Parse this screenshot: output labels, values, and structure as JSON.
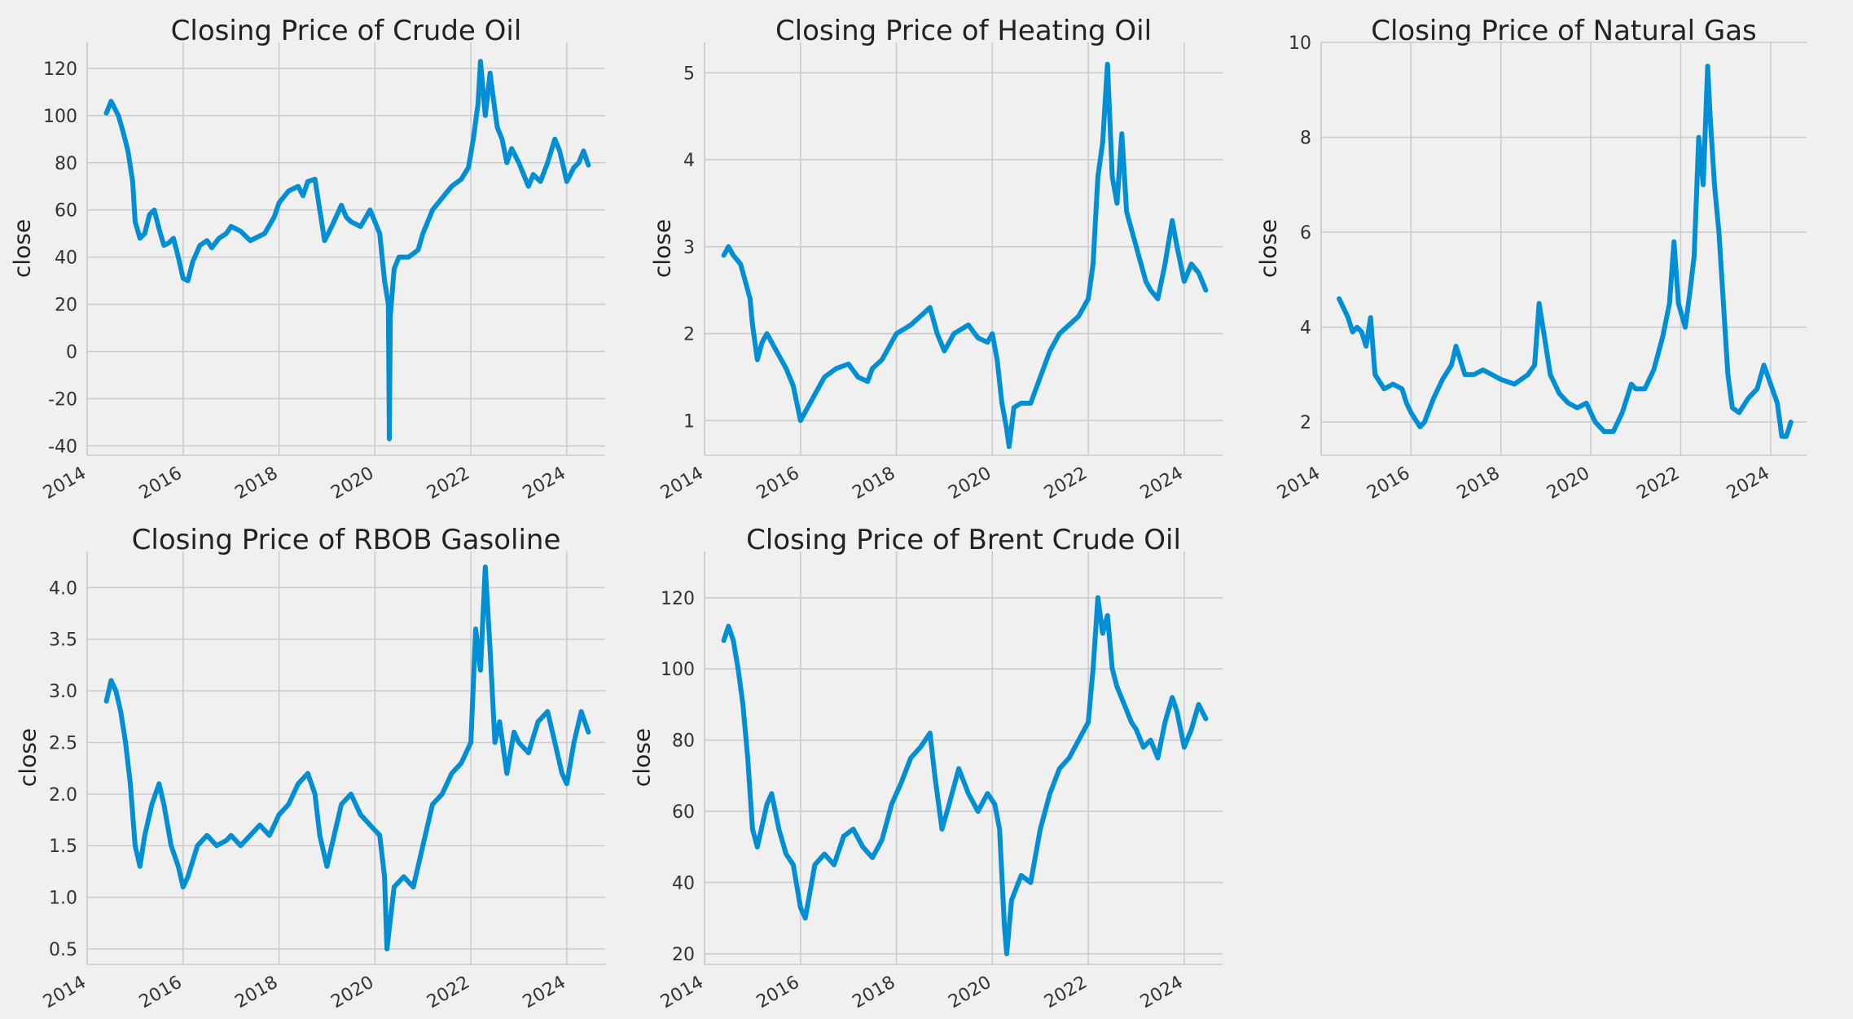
{
  "figure": {
    "background": "#f0f0f0",
    "line_color": "#008fd5",
    "grid_color": "#cbcbcb"
  },
  "chart_data": [
    {
      "type": "line",
      "title": "Closing Price of Crude Oil",
      "xlabel": "",
      "ylabel": "close",
      "xlim": [
        2014.0,
        2024.8
      ],
      "ylim": [
        -44,
        131
      ],
      "xticks": [
        2014,
        2016,
        2018,
        2020,
        2022,
        2024
      ],
      "yticks": [
        -40,
        -20,
        0,
        20,
        40,
        60,
        80,
        100,
        120
      ],
      "grid": true,
      "x": [
        2014.4,
        2014.5,
        2014.55,
        2014.65,
        2014.75,
        2014.85,
        2014.95,
        2015.0,
        2015.1,
        2015.2,
        2015.3,
        2015.4,
        2015.5,
        2015.6,
        2015.7,
        2015.8,
        2015.9,
        2016.0,
        2016.1,
        2016.2,
        2016.35,
        2016.5,
        2016.6,
        2016.75,
        2016.9,
        2017.0,
        2017.2,
        2017.4,
        2017.5,
        2017.7,
        2017.9,
        2018.0,
        2018.2,
        2018.4,
        2018.5,
        2018.6,
        2018.75,
        2018.85,
        2018.95,
        2019.1,
        2019.3,
        2019.4,
        2019.5,
        2019.7,
        2019.9,
        2020.0,
        2020.1,
        2020.2,
        2020.28,
        2020.3,
        2020.32,
        2020.4,
        2020.5,
        2020.7,
        2020.9,
        2021.0,
        2021.2,
        2021.4,
        2021.6,
        2021.8,
        2021.95,
        2022.05,
        2022.15,
        2022.2,
        2022.3,
        2022.4,
        2022.45,
        2022.55,
        2022.65,
        2022.75,
        2022.85,
        2023.0,
        2023.2,
        2023.3,
        2023.45,
        2023.6,
        2023.75,
        2023.85,
        2024.0,
        2024.15,
        2024.25,
        2024.35,
        2024.45
      ],
      "y": [
        101,
        106,
        104,
        100,
        93,
        85,
        72,
        55,
        48,
        50,
        58,
        60,
        52,
        45,
        46,
        48,
        40,
        31,
        30,
        38,
        45,
        47,
        44,
        48,
        50,
        53,
        51,
        47,
        48,
        50,
        57,
        63,
        68,
        70,
        66,
        72,
        73,
        60,
        47,
        53,
        62,
        57,
        55,
        53,
        60,
        55,
        50,
        30,
        20,
        -37,
        15,
        35,
        40,
        40,
        43,
        50,
        60,
        65,
        70,
        73,
        78,
        90,
        105,
        123,
        100,
        118,
        110,
        95,
        90,
        80,
        86,
        80,
        70,
        75,
        72,
        80,
        90,
        85,
        72,
        78,
        80,
        85,
        79
      ]
    },
    {
      "type": "line",
      "title": "Closing Price of Heating Oil",
      "xlabel": "",
      "ylabel": "close",
      "xlim": [
        2014.0,
        2024.8
      ],
      "ylim": [
        0.6,
        5.35
      ],
      "xticks": [
        2014,
        2016,
        2018,
        2020,
        2022,
        2024
      ],
      "yticks": [
        1,
        2,
        3,
        4,
        5
      ],
      "grid": true,
      "x": [
        2014.4,
        2014.5,
        2014.6,
        2014.75,
        2014.85,
        2014.95,
        2015.0,
        2015.1,
        2015.2,
        2015.3,
        2015.5,
        2015.7,
        2015.85,
        2016.0,
        2016.1,
        2016.3,
        2016.5,
        2016.75,
        2017.0,
        2017.2,
        2017.4,
        2017.5,
        2017.7,
        2017.9,
        2018.0,
        2018.3,
        2018.5,
        2018.7,
        2018.85,
        2019.0,
        2019.2,
        2019.5,
        2019.7,
        2019.9,
        2020.0,
        2020.1,
        2020.2,
        2020.3,
        2020.35,
        2020.45,
        2020.6,
        2020.8,
        2021.0,
        2021.2,
        2021.4,
        2021.6,
        2021.8,
        2022.0,
        2022.1,
        2022.2,
        2022.3,
        2022.4,
        2022.5,
        2022.6,
        2022.7,
        2022.8,
        2022.9,
        2023.0,
        2023.1,
        2023.2,
        2023.3,
        2023.45,
        2023.6,
        2023.75,
        2023.85,
        2024.0,
        2024.15,
        2024.3,
        2024.45
      ],
      "y": [
        2.9,
        3.0,
        2.9,
        2.8,
        2.6,
        2.4,
        2.1,
        1.7,
        1.9,
        2.0,
        1.8,
        1.6,
        1.4,
        1.0,
        1.1,
        1.3,
        1.5,
        1.6,
        1.65,
        1.5,
        1.45,
        1.6,
        1.7,
        1.9,
        2.0,
        2.1,
        2.2,
        2.3,
        2.0,
        1.8,
        2.0,
        2.1,
        1.95,
        1.9,
        2.0,
        1.7,
        1.2,
        0.9,
        0.7,
        1.15,
        1.2,
        1.2,
        1.5,
        1.8,
        2.0,
        2.1,
        2.2,
        2.4,
        2.8,
        3.8,
        4.2,
        5.1,
        3.8,
        3.5,
        4.3,
        3.4,
        3.2,
        3.0,
        2.8,
        2.6,
        2.5,
        2.4,
        2.8,
        3.3,
        3.0,
        2.6,
        2.8,
        2.7,
        2.5
      ]
    },
    {
      "type": "line",
      "title": "Closing Price of Natural Gas",
      "xlabel": "",
      "ylabel": "close",
      "xlim": [
        2014.0,
        2024.8
      ],
      "ylim": [
        1.3,
        10.0
      ],
      "xticks": [
        2014,
        2016,
        2018,
        2020,
        2022,
        2024
      ],
      "yticks": [
        2,
        4,
        6,
        8,
        10
      ],
      "grid": true,
      "x": [
        2014.4,
        2014.5,
        2014.6,
        2014.7,
        2014.8,
        2014.9,
        2015.0,
        2015.1,
        2015.2,
        2015.4,
        2015.6,
        2015.8,
        2015.9,
        2016.0,
        2016.2,
        2016.3,
        2016.5,
        2016.7,
        2016.9,
        2017.0,
        2017.2,
        2017.4,
        2017.6,
        2017.8,
        2018.0,
        2018.3,
        2018.6,
        2018.75,
        2018.85,
        2018.95,
        2019.1,
        2019.3,
        2019.5,
        2019.7,
        2019.9,
        2020.1,
        2020.3,
        2020.5,
        2020.7,
        2020.9,
        2021.0,
        2021.2,
        2021.4,
        2021.6,
        2021.75,
        2021.85,
        2021.95,
        2022.1,
        2022.2,
        2022.3,
        2022.4,
        2022.5,
        2022.6,
        2022.65,
        2022.75,
        2022.85,
        2022.95,
        2023.05,
        2023.15,
        2023.3,
        2023.5,
        2023.7,
        2023.85,
        2024.0,
        2024.15,
        2024.25,
        2024.35,
        2024.45
      ],
      "y": [
        4.6,
        4.4,
        4.2,
        3.9,
        4.0,
        3.9,
        3.6,
        4.2,
        3.0,
        2.7,
        2.8,
        2.7,
        2.4,
        2.2,
        1.9,
        2.0,
        2.5,
        2.9,
        3.2,
        3.6,
        3.0,
        3.0,
        3.1,
        3.0,
        2.9,
        2.8,
        3.0,
        3.2,
        4.5,
        3.9,
        3.0,
        2.6,
        2.4,
        2.3,
        2.4,
        2.0,
        1.8,
        1.8,
        2.2,
        2.8,
        2.7,
        2.7,
        3.1,
        3.8,
        4.5,
        5.8,
        4.5,
        4.0,
        4.7,
        5.5,
        8.0,
        7.0,
        9.5,
        8.5,
        7.0,
        6.0,
        4.5,
        3.0,
        2.3,
        2.2,
        2.5,
        2.7,
        3.2,
        2.8,
        2.4,
        1.7,
        1.7,
        2.0
      ]
    },
    {
      "type": "line",
      "title": "Closing Price of RBOB Gasoline",
      "xlabel": "",
      "ylabel": "close",
      "xlim": [
        2014.0,
        2024.8
      ],
      "ylim": [
        0.35,
        4.35
      ],
      "xticks": [
        2014,
        2016,
        2018,
        2020,
        2022,
        2024
      ],
      "yticks": [
        0.5,
        1.0,
        1.5,
        2.0,
        2.5,
        3.0,
        3.5,
        4.0
      ],
      "grid": true,
      "x": [
        2014.4,
        2014.5,
        2014.6,
        2014.7,
        2014.8,
        2014.9,
        2015.0,
        2015.1,
        2015.2,
        2015.35,
        2015.5,
        2015.6,
        2015.75,
        2015.9,
        2016.0,
        2016.1,
        2016.3,
        2016.5,
        2016.7,
        2016.9,
        2017.0,
        2017.2,
        2017.4,
        2017.6,
        2017.8,
        2018.0,
        2018.2,
        2018.4,
        2018.6,
        2018.75,
        2018.85,
        2019.0,
        2019.2,
        2019.3,
        2019.5,
        2019.7,
        2019.9,
        2020.1,
        2020.2,
        2020.25,
        2020.3,
        2020.4,
        2020.6,
        2020.8,
        2021.0,
        2021.2,
        2021.4,
        2021.6,
        2021.8,
        2022.0,
        2022.1,
        2022.2,
        2022.3,
        2022.4,
        2022.5,
        2022.6,
        2022.75,
        2022.9,
        2023.0,
        2023.2,
        2023.4,
        2023.6,
        2023.75,
        2023.9,
        2024.0,
        2024.15,
        2024.3,
        2024.45
      ],
      "y": [
        2.9,
        3.1,
        3.0,
        2.8,
        2.5,
        2.1,
        1.5,
        1.3,
        1.6,
        1.9,
        2.1,
        1.9,
        1.5,
        1.3,
        1.1,
        1.2,
        1.5,
        1.6,
        1.5,
        1.55,
        1.6,
        1.5,
        1.6,
        1.7,
        1.6,
        1.8,
        1.9,
        2.1,
        2.2,
        2.0,
        1.6,
        1.3,
        1.7,
        1.9,
        2.0,
        1.8,
        1.7,
        1.6,
        1.2,
        0.5,
        0.7,
        1.1,
        1.2,
        1.1,
        1.5,
        1.9,
        2.0,
        2.2,
        2.3,
        2.5,
        3.6,
        3.2,
        4.2,
        3.4,
        2.5,
        2.7,
        2.2,
        2.6,
        2.5,
        2.4,
        2.7,
        2.8,
        2.5,
        2.2,
        2.1,
        2.5,
        2.8,
        2.6
      ]
    },
    {
      "type": "line",
      "title": "Closing Price of Brent Crude Oil",
      "xlabel": "",
      "ylabel": "close",
      "xlim": [
        2014.0,
        2024.8
      ],
      "ylim": [
        17,
        133
      ],
      "xticks": [
        2014,
        2016,
        2018,
        2020,
        2022,
        2024
      ],
      "yticks": [
        20,
        40,
        60,
        80,
        100,
        120
      ],
      "grid": true,
      "x": [
        2014.4,
        2014.5,
        2014.6,
        2014.7,
        2014.8,
        2014.9,
        2015.0,
        2015.1,
        2015.3,
        2015.4,
        2015.55,
        2015.7,
        2015.85,
        2016.0,
        2016.1,
        2016.3,
        2016.5,
        2016.7,
        2016.9,
        2017.1,
        2017.3,
        2017.5,
        2017.7,
        2017.9,
        2018.1,
        2018.3,
        2018.5,
        2018.7,
        2018.8,
        2018.95,
        2019.1,
        2019.3,
        2019.5,
        2019.7,
        2019.9,
        2020.05,
        2020.15,
        2020.25,
        2020.3,
        2020.4,
        2020.6,
        2020.8,
        2021.0,
        2021.2,
        2021.4,
        2021.6,
        2021.8,
        2022.0,
        2022.1,
        2022.2,
        2022.3,
        2022.4,
        2022.5,
        2022.6,
        2022.75,
        2022.9,
        2023.0,
        2023.15,
        2023.3,
        2023.45,
        2023.6,
        2023.75,
        2023.85,
        2024.0,
        2024.15,
        2024.3,
        2024.45
      ],
      "y": [
        108,
        112,
        108,
        100,
        90,
        75,
        55,
        50,
        62,
        65,
        55,
        48,
        45,
        33,
        30,
        45,
        48,
        45,
        53,
        55,
        50,
        47,
        52,
        62,
        68,
        75,
        78,
        82,
        70,
        55,
        62,
        72,
        65,
        60,
        65,
        62,
        55,
        28,
        20,
        35,
        42,
        40,
        55,
        65,
        72,
        75,
        80,
        85,
        100,
        120,
        110,
        115,
        100,
        95,
        90,
        85,
        83,
        78,
        80,
        75,
        85,
        92,
        88,
        78,
        83,
        90,
        86
      ]
    }
  ]
}
